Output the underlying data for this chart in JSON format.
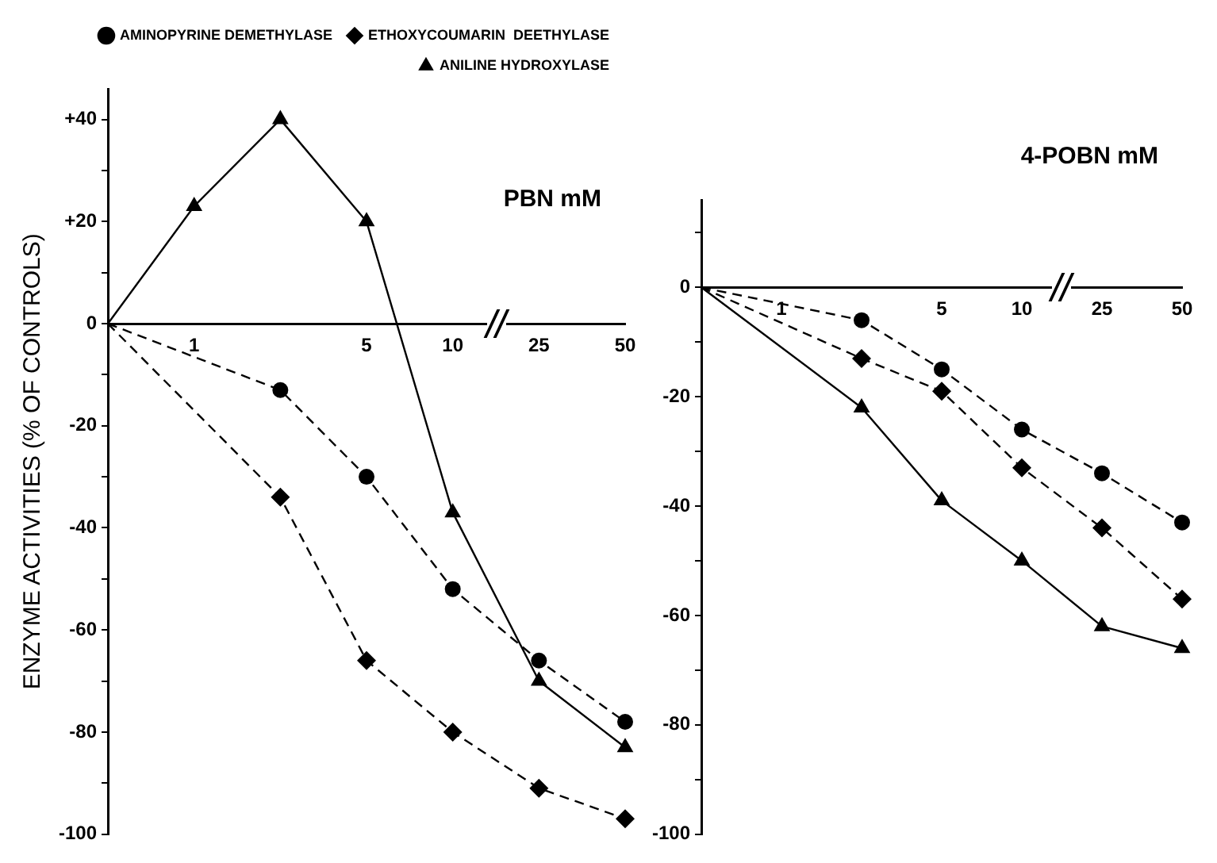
{
  "chart_data": [
    {
      "type": "line",
      "xlabel": "PBN mM",
      "ylabel": "ENZYME ACTIVITIES (% OF CONTROLS)",
      "categories": [
        null,
        "1",
        null,
        "5",
        "10",
        "25",
        "50"
      ],
      "ylim": [
        -100,
        46
      ],
      "yticks": [
        -100,
        {
          "value": -90,
          "label": null
        },
        -80,
        {
          "value": -70,
          "label": null
        },
        -60,
        {
          "value": -50,
          "label": null
        },
        -40,
        {
          "value": -30,
          "label": null
        },
        -20,
        {
          "value": -10,
          "label": null
        },
        0,
        {
          "value": 10,
          "label": null
        },
        {
          "value": 20,
          "label": "+20"
        },
        {
          "value": 30,
          "label": null
        },
        {
          "value": 40,
          "label": "+40"
        }
      ],
      "grid": false,
      "legend": "top right",
      "series": [
        {
          "name": "AMINOPYRINE DEMETHYLASE",
          "color": "#000000",
          "marker": "circle",
          "line_style": "dashed",
          "values": [
            0,
            null,
            -13,
            -30,
            -52,
            -66,
            -78
          ]
        },
        {
          "name": "ETHOXYCOUMARIN  DEETHYLASE",
          "color": "#000000",
          "marker": "diamond",
          "line_style": "dashed",
          "values": [
            0,
            null,
            -34,
            -66,
            -80,
            -91,
            -97
          ]
        },
        {
          "name": "ANILINE HYDROXYLASE",
          "color": "#000000",
          "marker": "triangle",
          "line_style": "solid",
          "values": [
            0,
            23,
            40,
            20,
            -37,
            -70,
            -83
          ]
        }
      ]
    },
    {
      "type": "line",
      "xlabel": "4-POBN mM",
      "categories": [
        null,
        "1",
        null,
        "5",
        "10",
        "25",
        "50"
      ],
      "ylim": [
        -100,
        16
      ],
      "yticks": [
        -100,
        {
          "value": -90,
          "label": null
        },
        -80,
        {
          "value": -70,
          "label": null
        },
        -60,
        {
          "value": -50,
          "label": null
        },
        -40,
        {
          "value": -30,
          "label": null
        },
        -20,
        {
          "value": -10,
          "label": null
        },
        0,
        {
          "value": 10,
          "label": null
        }
      ],
      "grid": false,
      "series": [
        {
          "color": "#000000",
          "marker": "circle",
          "line_style": "dashed",
          "values": [
            0,
            null,
            -6,
            -15,
            -26,
            -34,
            -43
          ]
        },
        {
          "color": "#000000",
          "marker": "diamond",
          "line_style": "dashed",
          "values": [
            0,
            null,
            -13,
            -19,
            -33,
            -44,
            -57
          ]
        },
        {
          "color": "#000000",
          "marker": "triangle",
          "line_style": "solid",
          "values": [
            0,
            null,
            -22,
            -39,
            -50,
            -62,
            -66
          ]
        }
      ]
    }
  ]
}
